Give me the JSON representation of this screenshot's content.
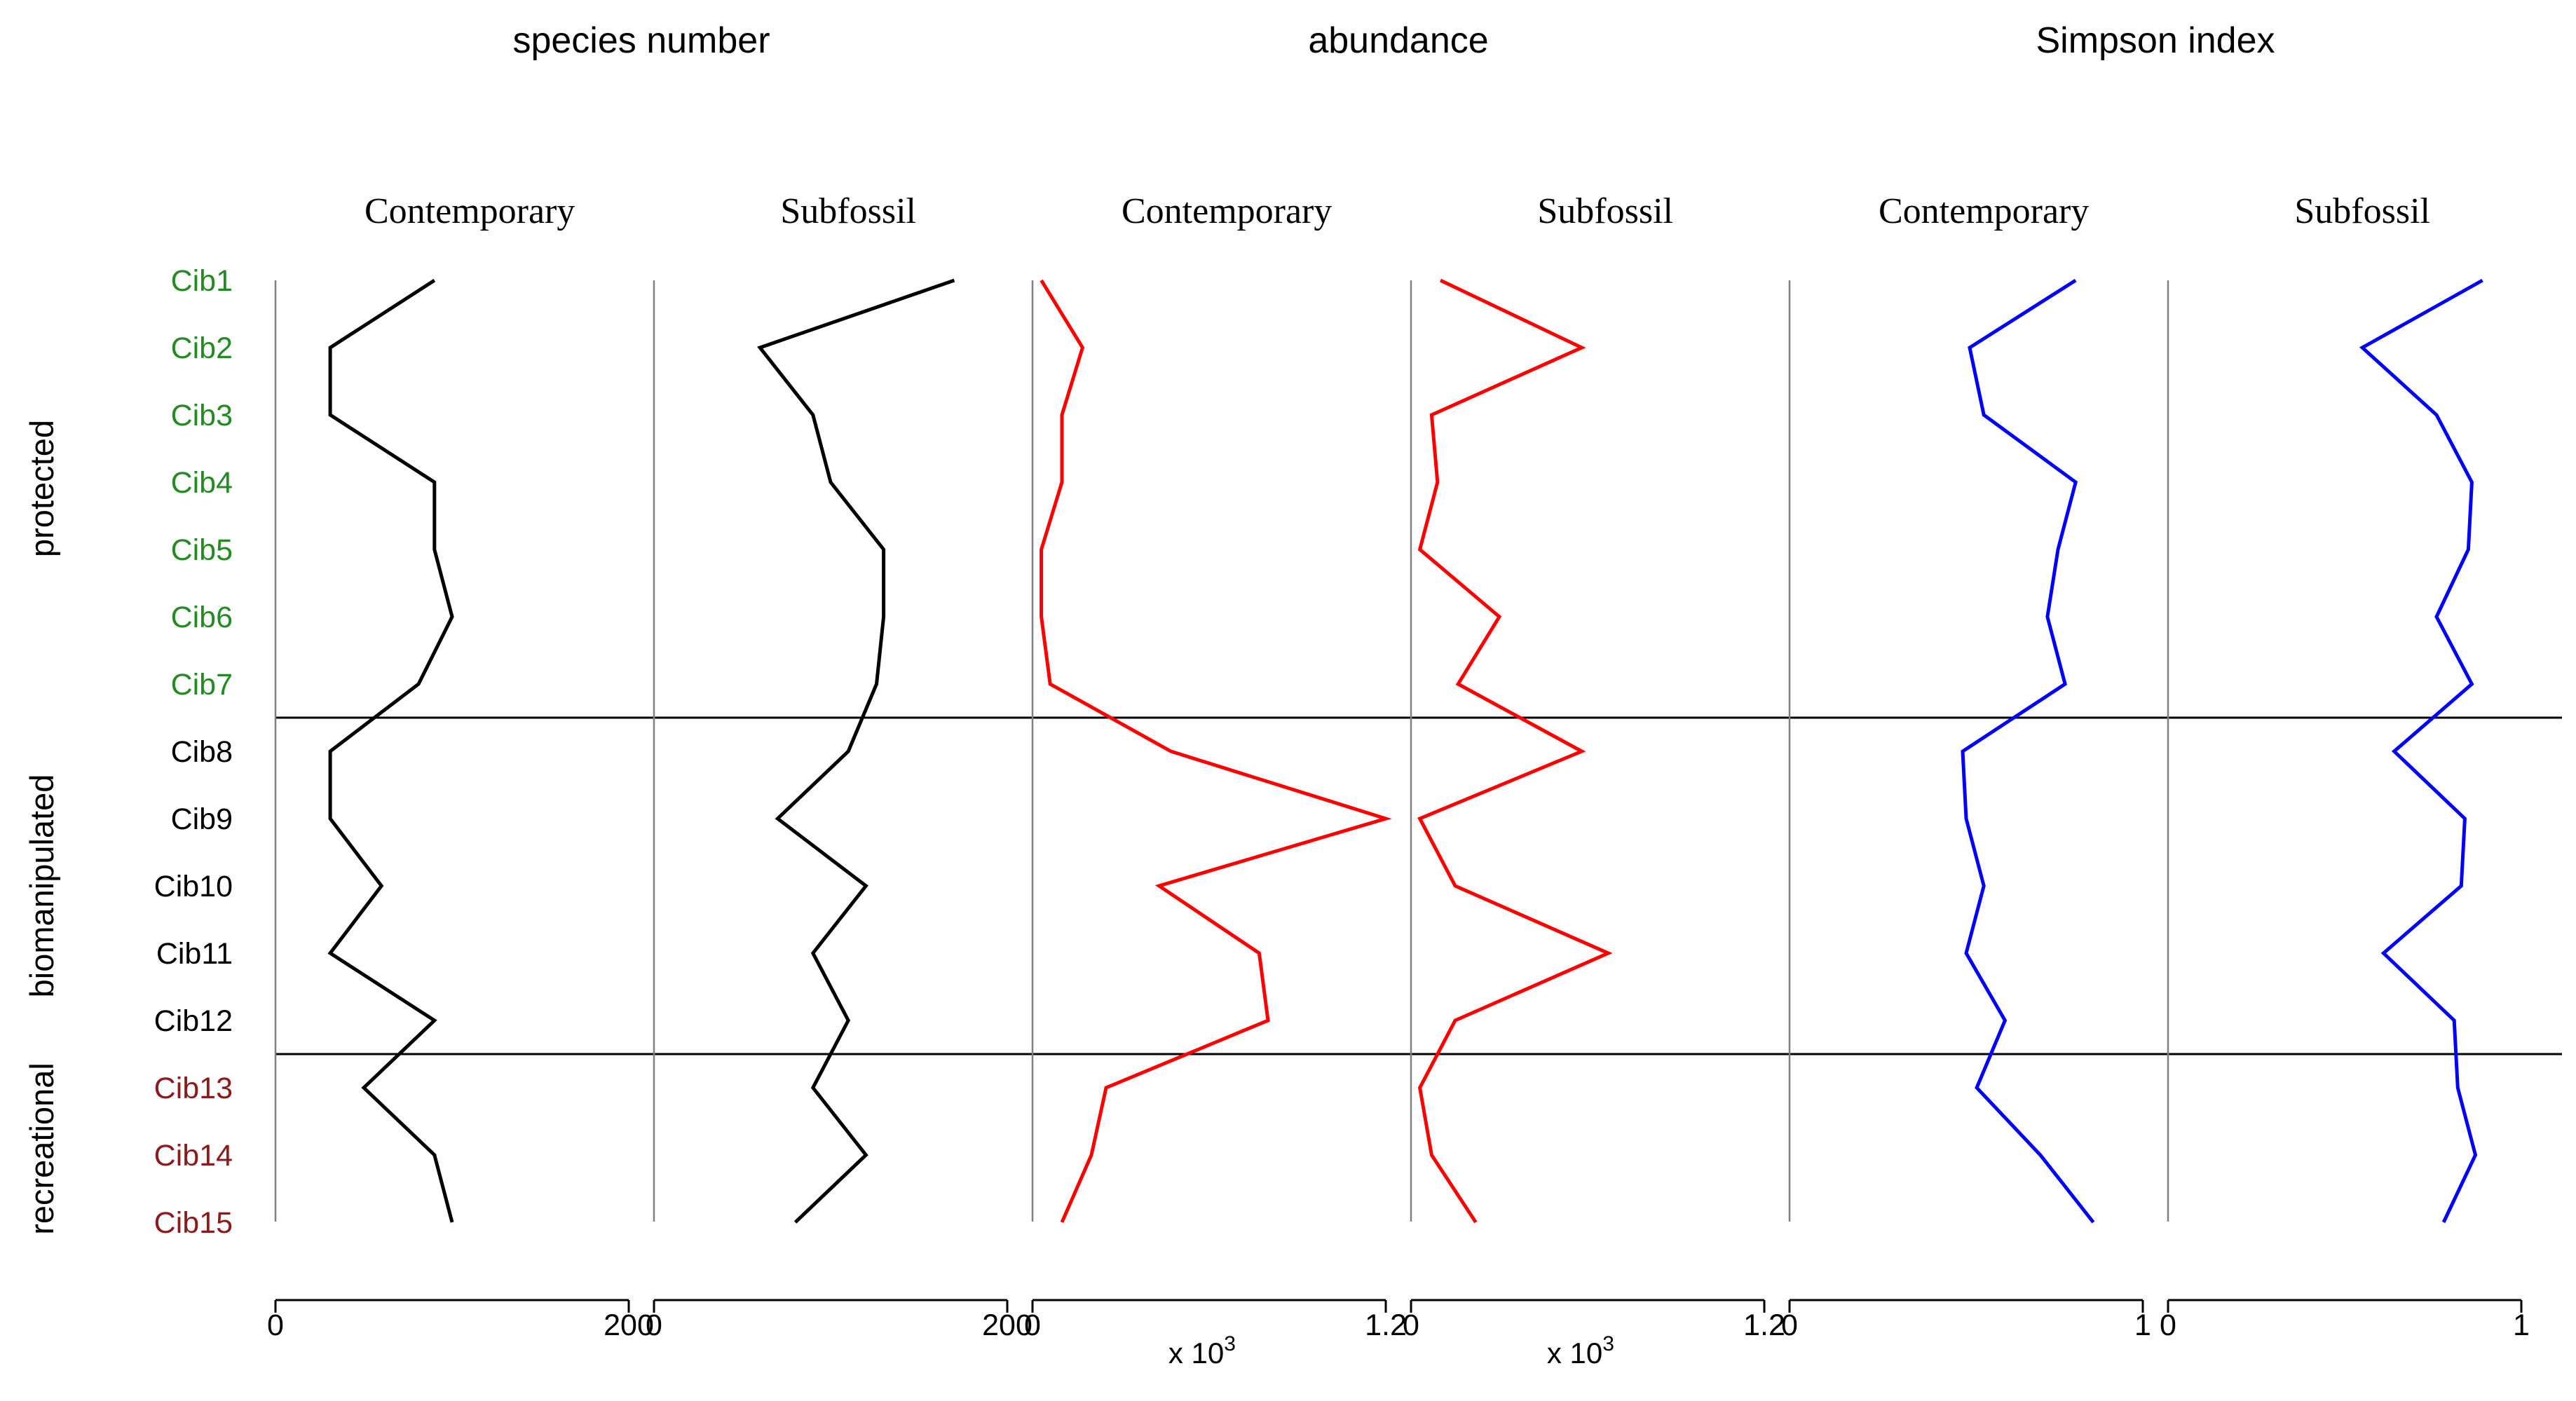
{
  "chart_data": {
    "type": "line",
    "sites": [
      "Cib1",
      "Cib2",
      "Cib3",
      "Cib4",
      "Cib5",
      "Cib6",
      "Cib7",
      "Cib8",
      "Cib9",
      "Cib10",
      "Cib11",
      "Cib12",
      "Cib13",
      "Cib14",
      "Cib15"
    ],
    "groups": [
      {
        "name": "protected",
        "color": "#228B22",
        "sites": [
          0,
          1,
          2,
          3,
          4,
          5,
          6
        ]
      },
      {
        "name": "biomanipulated",
        "color": "#000000",
        "sites": [
          7,
          8,
          9,
          10,
          11
        ]
      },
      {
        "name": "recreational",
        "color": "#8B1A1A",
        "sites": [
          12,
          13,
          14
        ]
      }
    ],
    "metrics": [
      {
        "title": "species number",
        "color": "#000000",
        "panels": [
          {
            "label": "Contemporary",
            "xlim": [
              0,
              200
            ],
            "ticks": [
              "0",
              "200"
            ],
            "multiplier": "",
            "values": [
              90,
              31,
              31,
              90,
              90,
              100,
              81,
              31,
              31,
              60,
              31,
              90,
              50,
              90,
              100
            ]
          },
          {
            "label": "Subfossil",
            "xlim": [
              0,
              200
            ],
            "ticks": [
              "0",
              "200"
            ],
            "multiplier": "",
            "values": [
              170,
              60,
              90,
              100,
              130,
              130,
              126,
              110,
              70,
              120,
              90,
              110,
              90,
              120,
              80
            ]
          }
        ]
      },
      {
        "title": "abundance",
        "color": "#ff0000",
        "panels": [
          {
            "label": "Contemporary",
            "xlim": [
              0,
              1.2
            ],
            "ticks": [
              "0",
              "1.2"
            ],
            "multiplier": "x 10",
            "multiplier_exp": "3",
            "values": [
              0.03,
              0.17,
              0.1,
              0.1,
              0.03,
              0.03,
              0.06,
              0.47,
              1.2,
              0.43,
              0.77,
              0.8,
              0.25,
              0.2,
              0.1
            ]
          },
          {
            "label": "Subfossil",
            "xlim": [
              0,
              1.2
            ],
            "ticks": [
              "0",
              "1.2"
            ],
            "multiplier": "x 10",
            "multiplier_exp": "3",
            "values": [
              0.1,
              0.58,
              0.07,
              0.09,
              0.03,
              0.3,
              0.16,
              0.58,
              0.03,
              0.15,
              0.67,
              0.15,
              0.03,
              0.07,
              0.22
            ]
          }
        ]
      },
      {
        "title": "Simpson index",
        "color": "#0000ff",
        "panels": [
          {
            "label": "Contemporary",
            "xlim": [
              0,
              1
            ],
            "ticks": [
              "0",
              "1"
            ],
            "multiplier": "",
            "values": [
              0.81,
              0.51,
              0.55,
              0.81,
              0.76,
              0.73,
              0.78,
              0.49,
              0.5,
              0.55,
              0.5,
              0.61,
              0.53,
              0.71,
              0.86
            ]
          },
          {
            "label": "Subfossil",
            "xlim": [
              0,
              1
            ],
            "ticks": [
              "0",
              "1"
            ],
            "multiplier": "",
            "values": [
              0.89,
              0.55,
              0.76,
              0.86,
              0.85,
              0.76,
              0.86,
              0.64,
              0.84,
              0.83,
              0.61,
              0.81,
              0.82,
              0.87,
              0.78
            ]
          }
        ]
      }
    ]
  }
}
